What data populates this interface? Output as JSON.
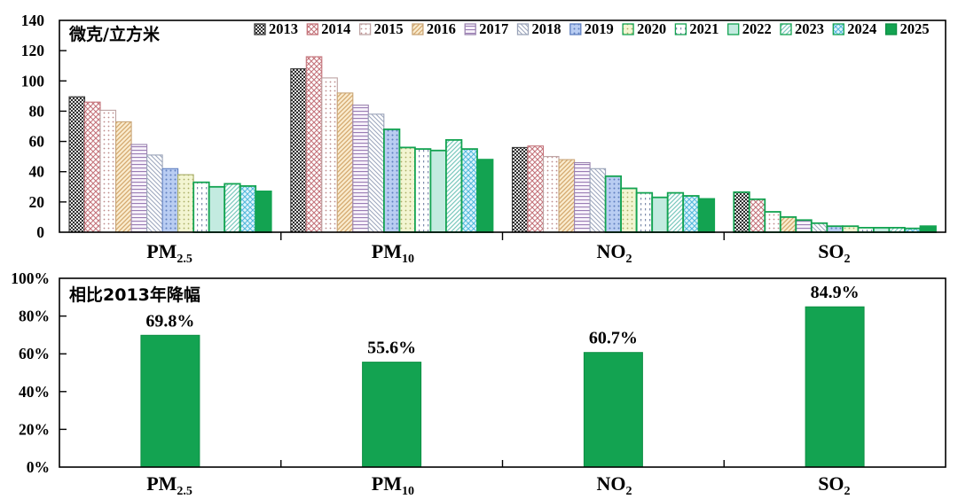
{
  "chart_data": [
    {
      "type": "bar",
      "unit_label": "微克/立方米",
      "ylabel": "微克/立方米",
      "ylim": [
        0,
        140
      ],
      "yticks": [
        0,
        20,
        40,
        60,
        80,
        100,
        120,
        140
      ],
      "grid": false,
      "legend_position": "top-inside",
      "years": [
        "2013",
        "2014",
        "2015",
        "2016",
        "2017",
        "2018",
        "2019",
        "2020",
        "2021",
        "2022",
        "2023",
        "2024",
        "2025"
      ],
      "categories": [
        "PM2.5",
        "PM10",
        "NO2",
        "SO2"
      ],
      "category_display": [
        {
          "main": "PM",
          "sub": "2.5"
        },
        {
          "main": "PM",
          "sub": "10"
        },
        {
          "main": "NO",
          "sub": "2"
        },
        {
          "main": "SO",
          "sub": "2"
        }
      ],
      "series": [
        {
          "name": "PM2.5",
          "values": [
            89.5,
            86,
            80.6,
            73,
            58,
            51,
            42,
            38,
            33,
            30,
            32,
            30.5,
            27
          ],
          "meets_standard": [
            0,
            0,
            0,
            0,
            0,
            0,
            0,
            0,
            1,
            1,
            1,
            1,
            1
          ]
        },
        {
          "name": "PM10",
          "values": [
            108,
            116,
            102,
            92,
            84,
            78,
            68,
            56,
            55,
            54,
            61,
            55,
            48
          ],
          "meets_standard": [
            0,
            0,
            0,
            0,
            0,
            0,
            1,
            1,
            1,
            1,
            1,
            1,
            1
          ]
        },
        {
          "name": "NO2",
          "values": [
            56,
            57,
            50,
            48,
            46,
            42,
            37,
            29,
            26,
            23,
            26,
            24,
            22
          ],
          "meets_standard": [
            0,
            0,
            0,
            0,
            0,
            0,
            1,
            1,
            1,
            1,
            1,
            1,
            1
          ]
        },
        {
          "name": "SO2",
          "values": [
            26.5,
            21.8,
            13.5,
            10,
            8,
            6,
            4,
            4,
            3,
            3,
            3,
            2.5,
            4
          ],
          "meets_standard": [
            1,
            1,
            1,
            1,
            1,
            1,
            1,
            1,
            1,
            1,
            1,
            1,
            1
          ]
        }
      ]
    },
    {
      "type": "bar",
      "title": "相比2013年降幅",
      "ylim": [
        0,
        100
      ],
      "yticks": [
        "0%",
        "20%",
        "40%",
        "60%",
        "80%",
        "100%"
      ],
      "grid": false,
      "categories": [
        "PM2.5",
        "PM10",
        "NO2",
        "SO2"
      ],
      "category_display": [
        {
          "main": "PM",
          "sub": "2.5"
        },
        {
          "main": "PM",
          "sub": "10"
        },
        {
          "main": "NO",
          "sub": "2"
        },
        {
          "main": "SO",
          "sub": "2"
        }
      ],
      "values": [
        69.8,
        55.6,
        60.7,
        84.9
      ],
      "value_labels": [
        "69.8%",
        "55.6%",
        "60.7%",
        "84.9%"
      ]
    }
  ],
  "colors": {
    "accent_green": "#13a351",
    "accent_green_dark": "#0d8f43",
    "axis": "#000000",
    "background": "#ffffff"
  },
  "legend_styles": [
    {
      "year": "2013",
      "pattern": "checker",
      "fill": "#2e2e2e",
      "bg": "#e3e3e3",
      "border": "#3a3a3a"
    },
    {
      "year": "2014",
      "pattern": "crosshatch",
      "fill": "#c4737a",
      "bg": "#ffffff",
      "border": "#c4737a"
    },
    {
      "year": "2015",
      "pattern": "dots",
      "fill": "#bc8a8a",
      "bg": "#ffffff",
      "border": "#bda3a3"
    },
    {
      "year": "2016",
      "pattern": "diagonal",
      "fill": "#d4a86e",
      "bg": "#faeccf",
      "border": "#c9a678"
    },
    {
      "year": "2017",
      "pattern": "hlines",
      "fill": "#9a7cb4",
      "bg": "#f7f2fa",
      "border": "#9c85b0"
    },
    {
      "year": "2018",
      "pattern": "rdiagonal",
      "fill": "#9aa4bc",
      "bg": "#ffffff",
      "border": "#9aa3b8"
    },
    {
      "year": "2019",
      "pattern": "dots",
      "fill": "#5f7fc0",
      "bg": "#b9cdf2",
      "border": "#5f7fc0"
    },
    {
      "year": "2020",
      "pattern": "dots",
      "fill": "#a9ad66",
      "bg": "#f3f5d2",
      "border": "#13a351"
    },
    {
      "year": "2021",
      "pattern": "vdashes",
      "fill": "#7d8cab",
      "bg": "#ffffff",
      "border": "#13a351"
    },
    {
      "year": "2022",
      "pattern": "plain",
      "fill": "#c3ebe0",
      "bg": "#c3ebe0",
      "border": "#13a351"
    },
    {
      "year": "2023",
      "pattern": "diagonal",
      "fill": "#79c8bd",
      "bg": "#ffffff",
      "border": "#13a351"
    },
    {
      "year": "2024",
      "pattern": "crosshatch",
      "fill": "#54b9dd",
      "bg": "#dff4fa",
      "border": "#13a351"
    },
    {
      "year": "2025",
      "pattern": "solid",
      "fill": "#13a351",
      "bg": "#13a351",
      "border": "#0d8f43"
    }
  ]
}
